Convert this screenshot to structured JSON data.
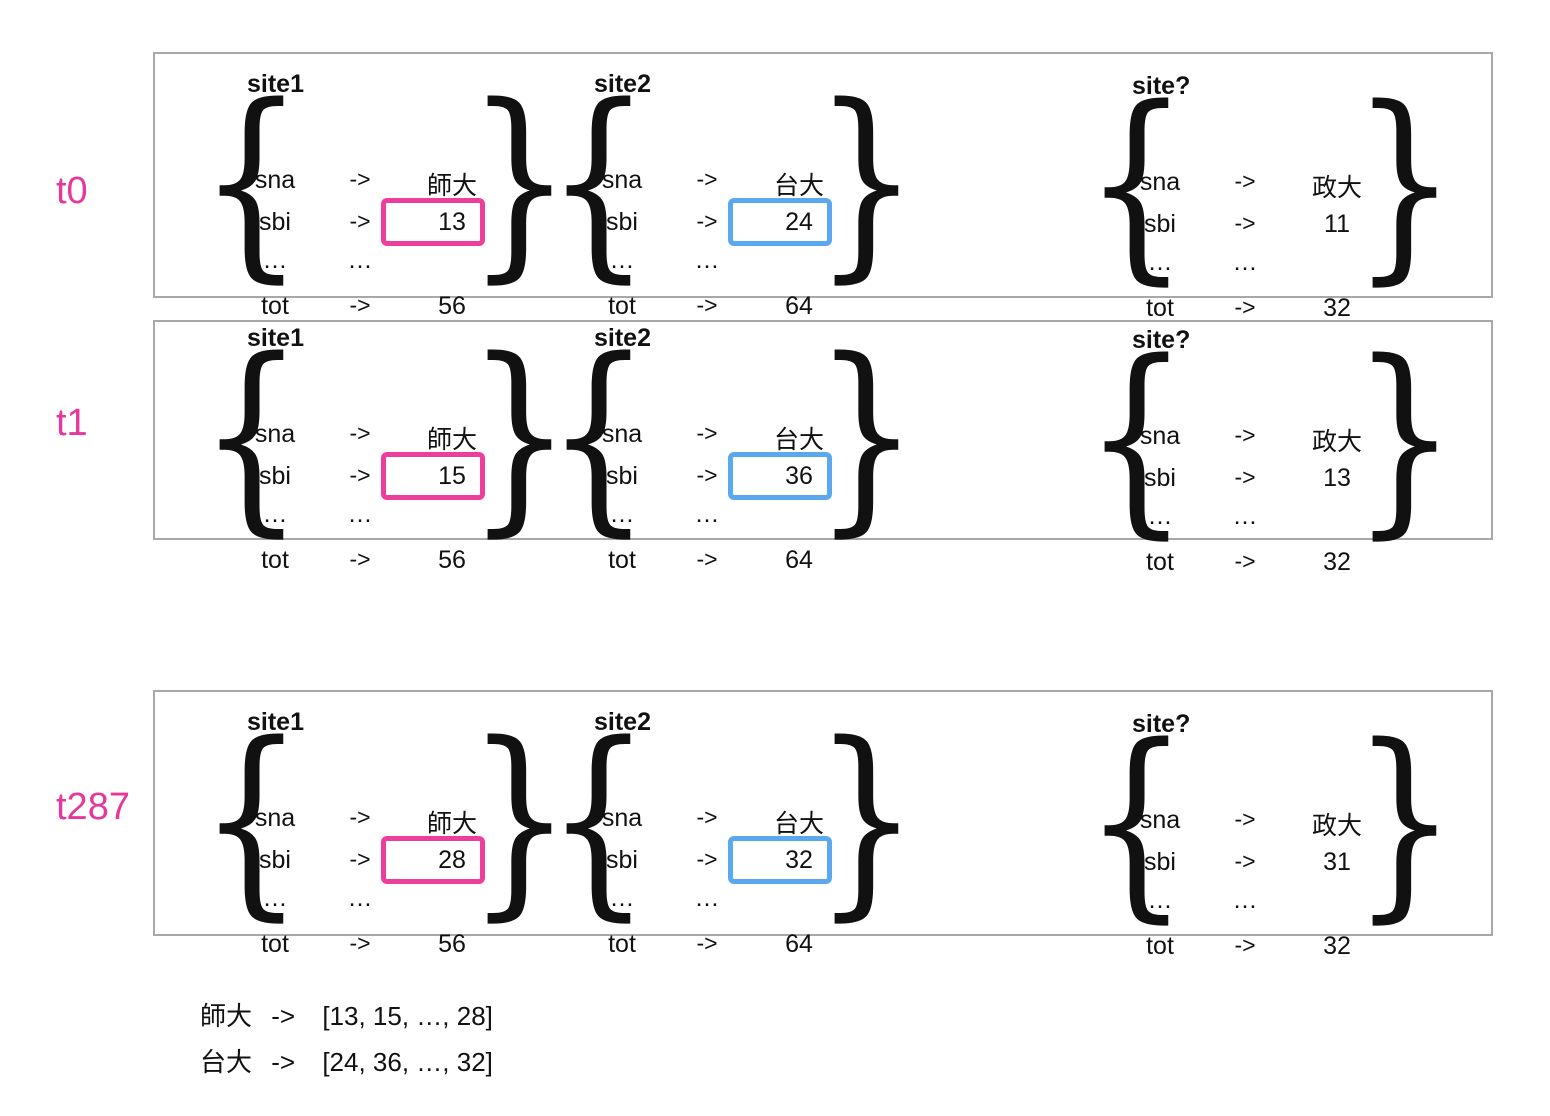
{
  "frames": [
    {
      "time": "t0",
      "sites": [
        {
          "title": "site1",
          "rows": [
            [
              "sna",
              "->",
              "師大"
            ],
            [
              "sbi",
              "->",
              "13"
            ],
            [
              "…",
              "…",
              ""
            ],
            [
              "tot",
              "->",
              "56"
            ]
          ],
          "highlight": "pink"
        },
        {
          "title": "site2",
          "rows": [
            [
              "sna",
              "->",
              "台大"
            ],
            [
              "sbi",
              "->",
              "24"
            ],
            [
              "…",
              "…",
              ""
            ],
            [
              "tot",
              "->",
              "64"
            ]
          ],
          "highlight": "blue"
        },
        {
          "title": "site?",
          "rows": [
            [
              "sna",
              "->",
              "政大"
            ],
            [
              "sbi",
              "->",
              "11"
            ],
            [
              "…",
              "…",
              ""
            ],
            [
              "tot",
              "->",
              "32"
            ]
          ],
          "highlight": ""
        }
      ]
    },
    {
      "time": "t1",
      "sites": [
        {
          "title": "site1",
          "rows": [
            [
              "sna",
              "->",
              "師大"
            ],
            [
              "sbi",
              "->",
              "15"
            ],
            [
              "…",
              "…",
              ""
            ],
            [
              "tot",
              "->",
              "56"
            ]
          ],
          "highlight": "pink"
        },
        {
          "title": "site2",
          "rows": [
            [
              "sna",
              "->",
              "台大"
            ],
            [
              "sbi",
              "->",
              "36"
            ],
            [
              "…",
              "…",
              ""
            ],
            [
              "tot",
              "->",
              "64"
            ]
          ],
          "highlight": "blue"
        },
        {
          "title": "site?",
          "rows": [
            [
              "sna",
              "->",
              "政大"
            ],
            [
              "sbi",
              "->",
              "13"
            ],
            [
              "…",
              "…",
              ""
            ],
            [
              "tot",
              "->",
              "32"
            ]
          ],
          "highlight": ""
        }
      ]
    },
    {
      "time": "t287",
      "sites": [
        {
          "title": "site1",
          "rows": [
            [
              "sna",
              "->",
              "師大"
            ],
            [
              "sbi",
              "->",
              "28"
            ],
            [
              "…",
              "…",
              ""
            ],
            [
              "tot",
              "->",
              "56"
            ]
          ],
          "highlight": "pink"
        },
        {
          "title": "site2",
          "rows": [
            [
              "sna",
              "->",
              "台大"
            ],
            [
              "sbi",
              "->",
              "32"
            ],
            [
              "…",
              "…",
              ""
            ],
            [
              "tot",
              "->",
              "64"
            ]
          ],
          "highlight": "blue"
        },
        {
          "title": "site?",
          "rows": [
            [
              "sna",
              "->",
              "政大"
            ],
            [
              "sbi",
              "->",
              "31"
            ],
            [
              "…",
              "…",
              ""
            ],
            [
              "tot",
              "->",
              "32"
            ]
          ],
          "highlight": ""
        }
      ]
    }
  ],
  "summary": [
    {
      "name": "師大",
      "arrow": "->",
      "values": "[13, 15, …, 28]"
    },
    {
      "name": "台大",
      "arrow": "->",
      "values": "[24, 36, …, 32]"
    }
  ],
  "colors": {
    "time_label": "#e8379a",
    "pink": "#ee3e9c",
    "blue": "#5aa8ef",
    "panel_border": "#a8a8a8"
  }
}
